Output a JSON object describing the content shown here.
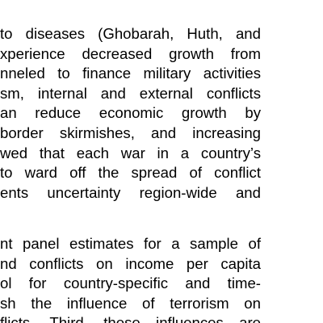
{
  "document": {
    "paragraphs": [
      {
        "lines": [
          "to diseases (Ghobarah, Huth, and",
          "xperience decreased growth from",
          "nneled to finance military activities",
          "sm, internal and external conflicts",
          "an reduce economic growth by",
          "border skirmishes, and increasing",
          "wed that each war in a   country’s",
          "to ward off the spread of conflict",
          "ents uncertainty region-wide and"
        ]
      },
      {
        "lines": [
          "nt panel estimates for a sample of",
          "nd conflicts on income per capita",
          "ol for country-specific and time-",
          "sh the influence of terrorism on",
          "flicts. Third, these influences are"
        ]
      }
    ]
  }
}
